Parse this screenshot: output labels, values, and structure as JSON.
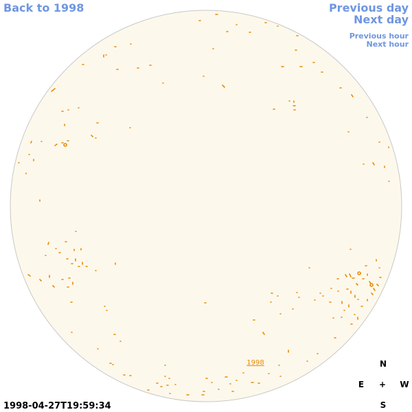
{
  "nav": {
    "back": "Back to 1998",
    "previous_day": "Previous day",
    "next_day": "Next day",
    "previous_hour": "Previous hour",
    "next_hour": "Next hour"
  },
  "timestamp": "1998-04-27T19:59:34",
  "disk_label": "1998",
  "compass": {
    "north": "N",
    "east": "E",
    "center": "+",
    "west": "W",
    "south": "S"
  }
}
